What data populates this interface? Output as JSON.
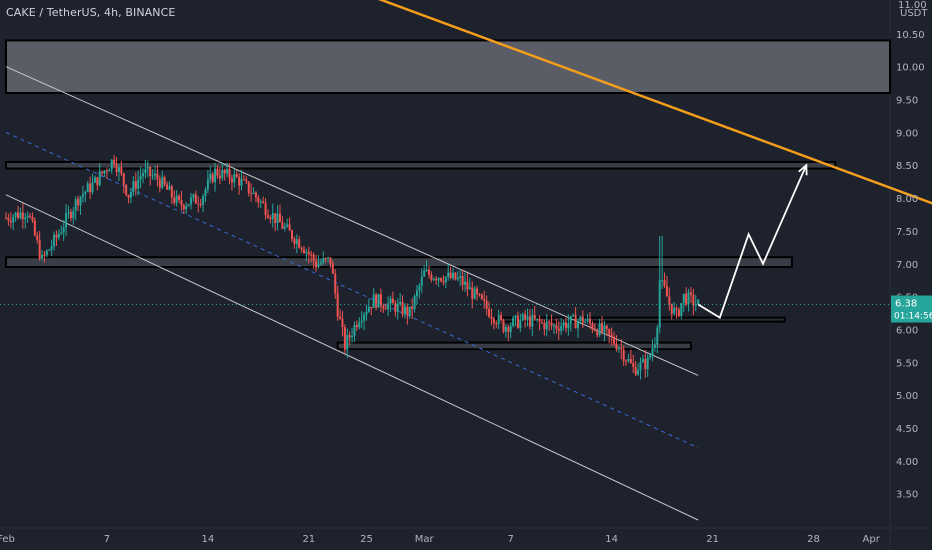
{
  "header": {
    "title": "CAKE / TetherUS, 4h, BINANCE"
  },
  "price_axis": {
    "unit_top": "11.00",
    "currency": "USDT",
    "current_price": "6.38",
    "countdown": "01:14:56"
  },
  "chart_data": {
    "type": "line",
    "title": "CAKE / TetherUS, 4h, BINANCE",
    "xlabel": "",
    "ylabel": "USDT",
    "ylim": [
      3.1,
      11.0
    ],
    "y_ticks": [
      "10.50",
      "10.00",
      "9.50",
      "9.00",
      "8.50",
      "8.00",
      "7.50",
      "7.00",
      "6.50",
      "6.00",
      "5.50",
      "5.00",
      "4.50",
      "4.00",
      "3.50"
    ],
    "x_ticks": [
      {
        "label": "Feb",
        "day": 0
      },
      {
        "label": "7",
        "day": 7
      },
      {
        "label": "14",
        "day": 14
      },
      {
        "label": "21",
        "day": 21
      },
      {
        "label": "25",
        "day": 25
      },
      {
        "label": "Mar",
        "day": 29
      },
      {
        "label": "7",
        "day": 35
      },
      {
        "label": "14",
        "day": 42
      },
      {
        "label": "21",
        "day": 49
      },
      {
        "label": "28",
        "day": 56
      },
      {
        "label": "Apr",
        "day": 60
      }
    ],
    "price_path": [
      {
        "day": 0.0,
        "price": 7.7
      },
      {
        "day": 1.5,
        "price": 7.8
      },
      {
        "day": 2.5,
        "price": 7.05
      },
      {
        "day": 3.5,
        "price": 7.4
      },
      {
        "day": 5.0,
        "price": 8.0
      },
      {
        "day": 6.0,
        "price": 8.2
      },
      {
        "day": 7.5,
        "price": 8.6
      },
      {
        "day": 8.5,
        "price": 8.05
      },
      {
        "day": 9.5,
        "price": 8.4
      },
      {
        "day": 10.5,
        "price": 8.3
      },
      {
        "day": 12.0,
        "price": 7.9
      },
      {
        "day": 13.5,
        "price": 8.0
      },
      {
        "day": 14.5,
        "price": 8.4
      },
      {
        "day": 16.0,
        "price": 8.3
      },
      {
        "day": 17.0,
        "price": 8.1
      },
      {
        "day": 18.0,
        "price": 7.85
      },
      {
        "day": 19.5,
        "price": 7.5
      },
      {
        "day": 20.5,
        "price": 7.3
      },
      {
        "day": 21.5,
        "price": 7.0
      },
      {
        "day": 22.5,
        "price": 7.05
      },
      {
        "day": 23.0,
        "price": 6.3
      },
      {
        "day": 23.5,
        "price": 5.75
      },
      {
        "day": 24.5,
        "price": 6.2
      },
      {
        "day": 25.5,
        "price": 6.45
      },
      {
        "day": 27.0,
        "price": 6.35
      },
      {
        "day": 28.0,
        "price": 6.25
      },
      {
        "day": 29.0,
        "price": 6.85
      },
      {
        "day": 30.5,
        "price": 6.8
      },
      {
        "day": 31.5,
        "price": 6.75
      },
      {
        "day": 33.0,
        "price": 6.4
      },
      {
        "day": 34.5,
        "price": 6.05
      },
      {
        "day": 36.0,
        "price": 6.15
      },
      {
        "day": 38.0,
        "price": 6.05
      },
      {
        "day": 40.0,
        "price": 6.15
      },
      {
        "day": 41.5,
        "price": 5.95
      },
      {
        "day": 42.5,
        "price": 5.75
      },
      {
        "day": 43.5,
        "price": 5.4
      },
      {
        "day": 44.5,
        "price": 5.5
      },
      {
        "day": 45.0,
        "price": 5.85
      },
      {
        "day": 45.5,
        "price": 6.7
      },
      {
        "day": 46.0,
        "price": 6.4
      },
      {
        "day": 46.5,
        "price": 6.2
      },
      {
        "day": 47.0,
        "price": 6.5
      },
      {
        "day": 48.0,
        "price": 6.38
      }
    ],
    "support_resistance_zones": [
      {
        "y1": 9.6,
        "y2": 10.4,
        "day1": 0,
        "day2": 66,
        "shade": "#5a5d66"
      },
      {
        "y1": 8.45,
        "y2": 8.55,
        "day1": 0,
        "day2": 57.5,
        "shade": "#3a3d46"
      },
      {
        "y1": 6.95,
        "y2": 7.1,
        "day1": 0,
        "day2": 54.5,
        "shade": "#3a3d46"
      },
      {
        "y1": 6.12,
        "y2": 6.18,
        "day1": 34,
        "day2": 54,
        "shade": "#2a2e39"
      },
      {
        "y1": 5.7,
        "y2": 5.8,
        "day1": 23,
        "day2": 47.5,
        "shade": "#3a3d46"
      }
    ],
    "trendlines": [
      {
        "name": "descending-resistance",
        "day1": 25,
        "price1": 11.1,
        "day2": 64.5,
        "price2": 7.9,
        "color": "#f59e1b"
      },
      {
        "name": "channel-upper",
        "day1": 0,
        "price1": 10.0,
        "day2": 48,
        "price2": 5.3,
        "color": "#c8cbd2"
      },
      {
        "name": "channel-lower",
        "day1": 0,
        "price1": 8.05,
        "day2": 48,
        "price2": 3.1,
        "color": "#c8cbd2"
      },
      {
        "name": "channel-mid",
        "day1": 0,
        "price1": 9.0,
        "day2": 48,
        "price2": 4.2,
        "color": "#3b6bd6",
        "dashed": true
      }
    ],
    "projection_path": [
      {
        "day": 48.0,
        "price": 6.38
      },
      {
        "day": 49.5,
        "price": 6.18
      },
      {
        "day": 51.5,
        "price": 7.45
      },
      {
        "day": 52.5,
        "price": 7.0
      },
      {
        "day": 55.5,
        "price": 8.5
      }
    ],
    "colors": {
      "background": "#1e222d",
      "up": "#26a69a",
      "down": "#ef5350",
      "zone_border": "#000000",
      "price_label_bg": "#26a69a",
      "axis_text": "#b2b5be"
    }
  }
}
